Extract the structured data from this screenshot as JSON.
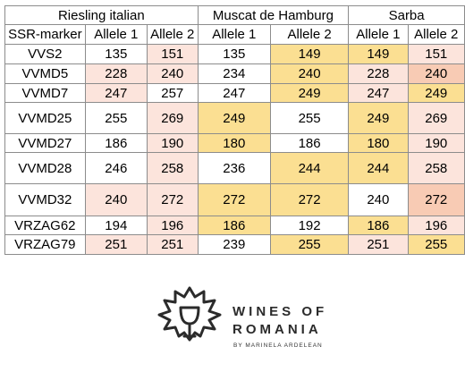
{
  "header": {
    "groups": [
      "Riesling italian",
      "Muscat de Hamburg",
      "Sarba"
    ],
    "marker_label": "SSR-marker",
    "allele1": "Allele 1",
    "allele2": "Allele 2"
  },
  "colors": {
    "w": "#ffffff",
    "p": "#fce4dc",
    "s": "#f8cbb4",
    "y": "#fbdf92"
  },
  "rows": [
    {
      "marker": "VVS2",
      "values": [
        "135",
        "151",
        "135",
        "149",
        "149",
        "151"
      ],
      "shade": [
        "w",
        "p",
        "w",
        "y",
        "y",
        "p"
      ]
    },
    {
      "marker": "VVMD5",
      "values": [
        "228",
        "240",
        "234",
        "240",
        "228",
        "240"
      ],
      "shade": [
        "p",
        "p",
        "w",
        "y",
        "p",
        "s"
      ]
    },
    {
      "marker": "VVMD7",
      "values": [
        "247",
        "257",
        "247",
        "249",
        "247",
        "249"
      ],
      "shade": [
        "p",
        "w",
        "w",
        "y",
        "p",
        "y"
      ]
    },
    {
      "marker": "VVMD25",
      "values": [
        "255",
        "269",
        "249",
        "255",
        "249",
        "269"
      ],
      "shade": [
        "w",
        "p",
        "y",
        "w",
        "y",
        "p"
      ]
    },
    {
      "marker": "VVMD27",
      "values": [
        "186",
        "190",
        "180",
        "186",
        "180",
        "190"
      ],
      "shade": [
        "w",
        "p",
        "y",
        "w",
        "y",
        "p"
      ]
    },
    {
      "marker": "VVMD28",
      "values": [
        "246",
        "258",
        "236",
        "244",
        "244",
        "258"
      ],
      "shade": [
        "w",
        "p",
        "w",
        "y",
        "y",
        "p"
      ]
    },
    {
      "marker": "VVMD32",
      "values": [
        "240",
        "272",
        "272",
        "272",
        "240",
        "272"
      ],
      "shade": [
        "p",
        "p",
        "y",
        "y",
        "w",
        "s"
      ]
    },
    {
      "marker": "VRZAG62",
      "values": [
        "194",
        "196",
        "186",
        "192",
        "186",
        "196"
      ],
      "shade": [
        "w",
        "p",
        "y",
        "w",
        "y",
        "p"
      ]
    },
    {
      "marker": "VRZAG79",
      "values": [
        "251",
        "251",
        "239",
        "255",
        "251",
        "255"
      ],
      "shade": [
        "p",
        "p",
        "w",
        "y",
        "p",
        "y"
      ]
    }
  ],
  "logo": {
    "line1": "WINES OF",
    "line2": "ROMANIA",
    "sub": "BY MARINELA ARDELEAN",
    "icon": "grape-leaf-wine-glass-icon"
  }
}
